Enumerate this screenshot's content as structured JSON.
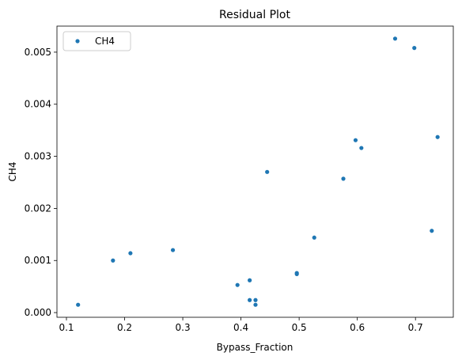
{
  "chart_data": {
    "type": "scatter",
    "title": "Residual Plot",
    "xlabel": "Bypass_Fraction",
    "ylabel": "CH4",
    "series": [
      {
        "name": "CH4",
        "color": "#1f77b4",
        "x": [
          0.12,
          0.18,
          0.21,
          0.283,
          0.394,
          0.415,
          0.415,
          0.425,
          0.425,
          0.445,
          0.496,
          0.496,
          0.526,
          0.576,
          0.597,
          0.607,
          0.665,
          0.698,
          0.728,
          0.738
        ],
        "values": [
          0.00015,
          0.001,
          0.00114,
          0.0012,
          0.00053,
          0.00062,
          0.00024,
          0.00024,
          0.00015,
          0.0027,
          0.00076,
          0.00074,
          0.00144,
          0.00257,
          0.00331,
          0.00316,
          0.00526,
          0.00508,
          0.00157,
          0.00337
        ]
      }
    ],
    "xlim": [
      0.0837,
      0.765
    ],
    "ylim": [
      -9e-05,
      0.0055
    ],
    "xticks": [
      0.1,
      0.2,
      0.3,
      0.4,
      0.5,
      0.6,
      0.7
    ],
    "yticks": [
      {
        "value": 0,
        "label": "0.000"
      },
      {
        "value": 0.001,
        "label": "0.001"
      },
      {
        "value": 0.002,
        "label": "0.002"
      },
      {
        "value": 0.003,
        "label": "0.003"
      },
      {
        "value": 0.004,
        "label": "0.004"
      },
      {
        "value": 0.005,
        "label": "0.005"
      }
    ],
    "legend": "upper left"
  }
}
